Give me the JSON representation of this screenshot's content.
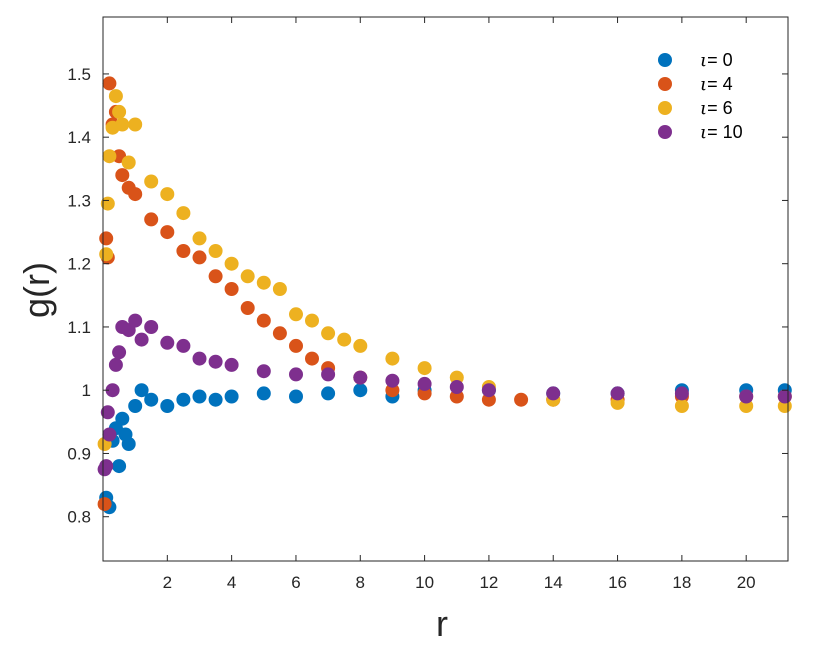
{
  "chart_data": {
    "type": "scatter",
    "title": "",
    "xlabel": "r",
    "ylabel": "g(r)",
    "xlim": [
      0,
      21.3
    ],
    "ylim": [
      0.73,
      1.59
    ],
    "x_ticks": [
      2,
      4,
      6,
      8,
      10,
      12,
      14,
      16,
      18,
      20
    ],
    "y_ticks": [
      0.8,
      0.9,
      1,
      1.1,
      1.2,
      1.3,
      1.4,
      1.5
    ],
    "x_tick_labels": [
      "2",
      "4",
      "6",
      "8",
      "10",
      "12",
      "14",
      "16",
      "18",
      "20"
    ],
    "y_tick_labels": [
      "0.8",
      "0.9",
      "1",
      "1.1",
      "1.2",
      "1.3",
      "1.4",
      "1.5"
    ],
    "grid": false,
    "legend_position": "top-right",
    "series": [
      {
        "name": "ι = 0",
        "symbol": "ι",
        "value_label": "= 0",
        "color": "#0072BD",
        "x": [
          0.1,
          0.2,
          0.3,
          0.4,
          0.5,
          0.6,
          0.7,
          0.8,
          1.0,
          1.2,
          1.5,
          2.0,
          2.5,
          3.0,
          3.5,
          4.0,
          5.0,
          6.0,
          7.0,
          8.0,
          9.0,
          10.0,
          12.0,
          14.0,
          16.0,
          18.0,
          20.0,
          21.2
        ],
        "y": [
          0.83,
          0.815,
          0.92,
          0.94,
          0.88,
          0.955,
          0.93,
          0.915,
          0.975,
          1.0,
          0.985,
          0.975,
          0.985,
          0.99,
          0.985,
          0.99,
          0.995,
          0.99,
          0.995,
          1.0,
          0.99,
          1.0,
          1.0,
          0.995,
          0.995,
          1.0,
          1.0,
          1.0
        ]
      },
      {
        "name": "ι = 4",
        "symbol": "ι",
        "value_label": "= 4",
        "color": "#D95319",
        "x": [
          0.05,
          0.1,
          0.15,
          0.2,
          0.3,
          0.4,
          0.5,
          0.6,
          0.8,
          1.0,
          1.5,
          2.0,
          2.5,
          3.0,
          3.5,
          4.0,
          4.5,
          5.0,
          5.5,
          6.0,
          6.5,
          7.0,
          8.0,
          9.0,
          10.0,
          11.0,
          12.0,
          13.0,
          14.0,
          16.0,
          18.0,
          20.0,
          21.2
        ],
        "y": [
          0.82,
          1.24,
          1.21,
          1.485,
          1.42,
          1.44,
          1.37,
          1.34,
          1.32,
          1.31,
          1.27,
          1.25,
          1.22,
          1.21,
          1.18,
          1.16,
          1.13,
          1.11,
          1.09,
          1.07,
          1.05,
          1.035,
          1.02,
          1.0,
          0.995,
          0.99,
          0.985,
          0.985,
          0.985,
          0.985,
          0.99,
          0.99,
          0.99
        ]
      },
      {
        "name": "ι = 6",
        "symbol": "ι",
        "value_label": "= 6",
        "color": "#EDB120",
        "x": [
          0.05,
          0.1,
          0.15,
          0.2,
          0.3,
          0.4,
          0.5,
          0.6,
          0.8,
          1.0,
          1.5,
          2.0,
          2.5,
          3.0,
          3.5,
          4.0,
          4.5,
          5.0,
          5.5,
          6.0,
          6.5,
          7.0,
          7.5,
          8.0,
          9.0,
          10.0,
          11.0,
          12.0,
          14.0,
          16.0,
          18.0,
          20.0,
          21.2
        ],
        "y": [
          0.915,
          1.215,
          1.295,
          1.37,
          1.415,
          1.465,
          1.44,
          1.42,
          1.36,
          1.42,
          1.33,
          1.31,
          1.28,
          1.24,
          1.22,
          1.2,
          1.18,
          1.17,
          1.16,
          1.12,
          1.11,
          1.09,
          1.08,
          1.07,
          1.05,
          1.035,
          1.02,
          1.005,
          0.985,
          0.98,
          0.975,
          0.975,
          0.975
        ]
      },
      {
        "name": "ι = 10",
        "symbol": "ι",
        "value_label": "= 10",
        "color": "#7E2F8E",
        "x": [
          0.05,
          0.1,
          0.15,
          0.2,
          0.3,
          0.4,
          0.5,
          0.6,
          0.8,
          1.0,
          1.2,
          1.5,
          2.0,
          2.5,
          3.0,
          3.5,
          4.0,
          5.0,
          6.0,
          7.0,
          8.0,
          9.0,
          10.0,
          11.0,
          12.0,
          14.0,
          16.0,
          18.0,
          20.0,
          21.2
        ],
        "y": [
          0.875,
          0.88,
          0.965,
          0.93,
          1.0,
          1.04,
          1.06,
          1.1,
          1.095,
          1.11,
          1.08,
          1.1,
          1.075,
          1.07,
          1.05,
          1.045,
          1.04,
          1.03,
          1.025,
          1.025,
          1.02,
          1.015,
          1.01,
          1.005,
          1.0,
          0.995,
          0.995,
          0.995,
          0.99,
          0.99
        ]
      }
    ]
  }
}
